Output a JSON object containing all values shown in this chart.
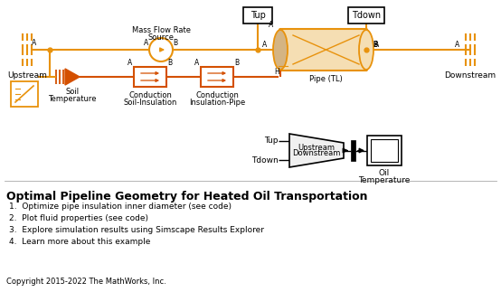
{
  "title": "Optimal Pipeline Geometry for Heated Oil Transportation",
  "bullet_points": [
    "1.  Optimize pipe insulation inner diameter (see code)",
    "2.  Plot fluid properties (see code)",
    "3.  Explore simulation results using Simscape Results Explorer",
    "4.  Learn more about this example"
  ],
  "copyright": "Copyright 2015-2022 The MathWorks, Inc.",
  "orange": "#E8920C",
  "dark_orange": "#D45000",
  "bg_color": "#FFFFFF"
}
